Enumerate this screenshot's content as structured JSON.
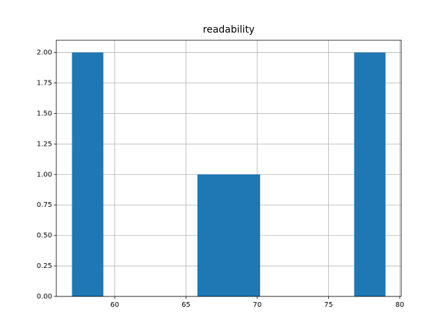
{
  "chart_data": {
    "type": "histogram",
    "title": "readability",
    "bins": [
      57,
      59.2,
      61.4,
      63.6,
      65.8,
      68,
      70.2,
      72.4,
      74.6,
      76.8,
      79
    ],
    "values": [
      2,
      0,
      0,
      0,
      1,
      1,
      0,
      0,
      0,
      2
    ],
    "color": "#1f77b4",
    "xlim": [
      55.9,
      80.1
    ],
    "xticks": [
      60,
      65,
      70,
      75,
      80
    ],
    "ylim": [
      0,
      2.1
    ],
    "yticks": [
      {
        "value": 0,
        "label": "0.00"
      },
      {
        "value": 0.25,
        "label": "0.25"
      },
      {
        "value": 0.5,
        "label": "0.50"
      },
      {
        "value": 0.75,
        "label": "0.75"
      },
      {
        "value": 1,
        "label": "1.00"
      },
      {
        "value": 1.25,
        "label": "1.25"
      },
      {
        "value": 1.5,
        "label": "1.50"
      },
      {
        "value": 1.75,
        "label": "1.75"
      },
      {
        "value": 2,
        "label": "2.00"
      }
    ],
    "grid": true
  }
}
